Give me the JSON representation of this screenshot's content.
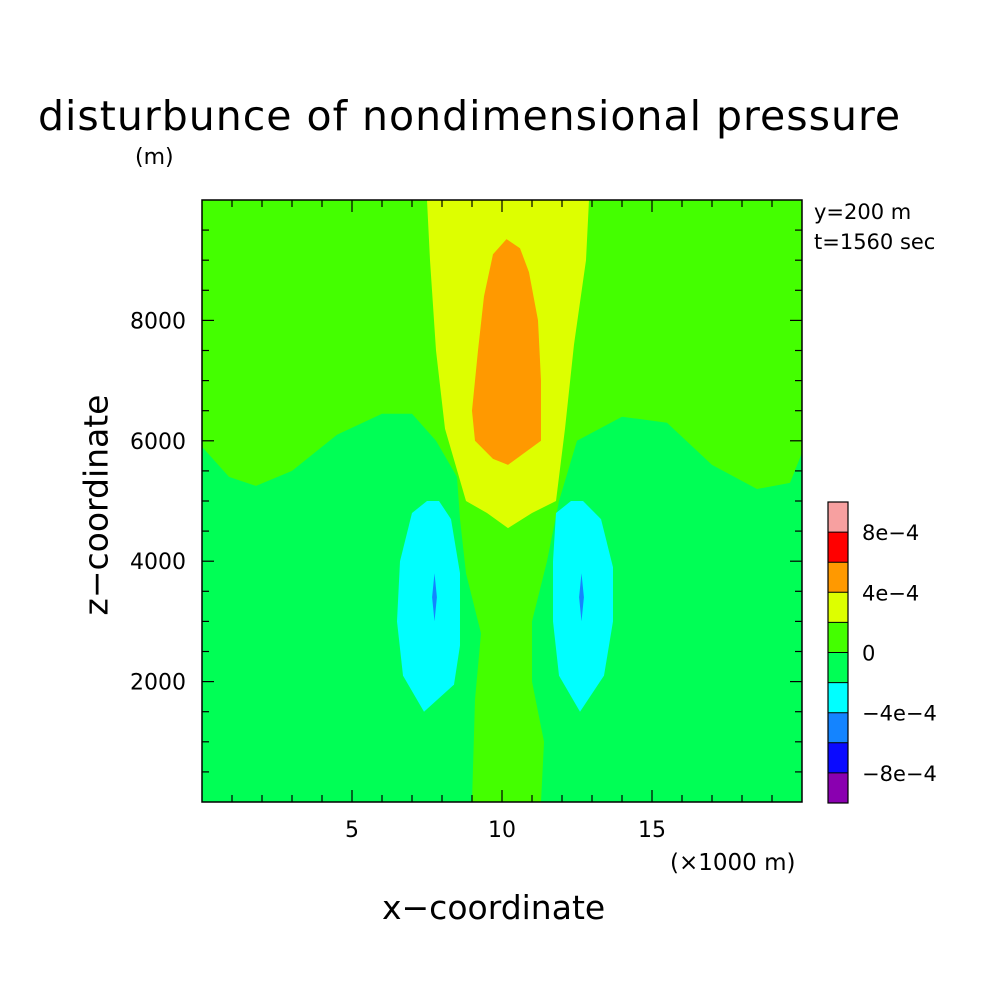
{
  "chart_data": {
    "type": "contour",
    "title": "disturbunce of nondimensional pressure",
    "xlabel": "x−coordinate",
    "ylabel": "z−coordinate",
    "x_unit": "(×1000 m)",
    "y_unit": "(m)",
    "annotations": [
      "y=200 m",
      "t=1560 sec"
    ],
    "xlim": [
      0,
      20000
    ],
    "ylim": [
      0,
      10000
    ],
    "x_ticks": [
      5000,
      10000,
      15000
    ],
    "x_tick_labels": [
      "5",
      "10",
      "15"
    ],
    "y_ticks": [
      2000,
      4000,
      6000,
      8000
    ],
    "y_tick_labels": [
      "2000",
      "4000",
      "6000",
      "8000"
    ],
    "colorbar": {
      "boundaries": [
        -0.001,
        -0.0008,
        -0.0006,
        -0.0004,
        -0.0002,
        0,
        0.0002,
        0.0004,
        0.0006,
        0.0008,
        0.001
      ],
      "colors": [
        "#8a00b0",
        "#0a0aff",
        "#1484ff",
        "#00ffff",
        "#00ff55",
        "#44ff00",
        "#ddff00",
        "#ff9900",
        "#ff0000",
        "#f7a0a0"
      ],
      "labels": [
        {
          "value": -0.0008,
          "text": "−8e−4"
        },
        {
          "value": -0.0004,
          "text": "−4e−4"
        },
        {
          "value": 0,
          "text": "0"
        },
        {
          "value": 0.0004,
          "text": "4e−4"
        },
        {
          "value": 0.0008,
          "text": "8e−4"
        }
      ]
    },
    "regions": [
      {
        "name": "background",
        "level_range": [
          -0.0002,
          0
        ],
        "color": "#00ff55",
        "points": [
          [
            0,
            0
          ],
          [
            20000,
            0
          ],
          [
            20000,
            10000
          ],
          [
            0,
            10000
          ]
        ]
      },
      {
        "name": "upper-positive-band",
        "level_range": [
          0,
          0.0002
        ],
        "color": "#44ff00",
        "points": [
          [
            0,
            10000
          ],
          [
            0,
            5900
          ],
          [
            900,
            5400
          ],
          [
            1800,
            5250
          ],
          [
            3000,
            5500
          ],
          [
            4500,
            6100
          ],
          [
            6000,
            6450
          ],
          [
            7000,
            6450
          ],
          [
            7800,
            6000
          ],
          [
            8500,
            5400
          ],
          [
            8600,
            4700
          ],
          [
            8800,
            3800
          ],
          [
            9300,
            2800
          ],
          [
            9100,
            1700
          ],
          [
            9000,
            0
          ],
          [
            11300,
            0
          ],
          [
            11400,
            1000
          ],
          [
            11000,
            2000
          ],
          [
            11000,
            3000
          ],
          [
            11500,
            4000
          ],
          [
            11900,
            5000
          ],
          [
            12500,
            6000
          ],
          [
            14000,
            6400
          ],
          [
            15500,
            6300
          ],
          [
            17000,
            5600
          ],
          [
            18500,
            5200
          ],
          [
            19600,
            5300
          ],
          [
            20000,
            5800
          ],
          [
            20000,
            10000
          ]
        ]
      },
      {
        "name": "central-plume",
        "level_range": [
          0.0002,
          0.0004
        ],
        "color": "#ddff00",
        "points": [
          [
            7500,
            10000
          ],
          [
            7600,
            9000
          ],
          [
            7800,
            7500
          ],
          [
            8100,
            6200
          ],
          [
            8800,
            5000
          ],
          [
            9500,
            4800
          ],
          [
            10200,
            4550
          ],
          [
            11000,
            4800
          ],
          [
            11800,
            5000
          ],
          [
            12100,
            6200
          ],
          [
            12400,
            7600
          ],
          [
            12800,
            9000
          ],
          [
            12900,
            10000
          ]
        ]
      },
      {
        "name": "upper-maximum",
        "level_range": [
          0.0004,
          0.0006
        ],
        "color": "#ff9900",
        "points": [
          [
            10150,
            9350
          ],
          [
            9700,
            9100
          ],
          [
            9400,
            8400
          ],
          [
            9200,
            7500
          ],
          [
            9000,
            6500
          ],
          [
            9100,
            6000
          ],
          [
            9700,
            5700
          ],
          [
            10200,
            5600
          ],
          [
            11300,
            6000
          ],
          [
            11300,
            7000
          ],
          [
            11200,
            8000
          ],
          [
            10900,
            8800
          ],
          [
            10600,
            9200
          ]
        ]
      },
      {
        "name": "left-minimum",
        "level_range": [
          -0.0004,
          -0.0002
        ],
        "color": "#00ffff",
        "points": [
          [
            7500,
            5000
          ],
          [
            7000,
            4800
          ],
          [
            6600,
            4000
          ],
          [
            6500,
            3000
          ],
          [
            6700,
            2100
          ],
          [
            7400,
            1500
          ],
          [
            8400,
            1950
          ],
          [
            8600,
            2600
          ],
          [
            8600,
            3800
          ],
          [
            8300,
            4700
          ],
          [
            7900,
            5000
          ]
        ]
      },
      {
        "name": "left-minimum-core",
        "level_range": [
          -0.0006,
          -0.0004
        ],
        "color": "#1484ff",
        "points": [
          [
            7750,
            3800
          ],
          [
            7670,
            3400
          ],
          [
            7750,
            3000
          ],
          [
            7830,
            3400
          ]
        ]
      },
      {
        "name": "right-minimum",
        "level_range": [
          -0.0004,
          -0.0002
        ],
        "color": "#00ffff",
        "points": [
          [
            12300,
            5000
          ],
          [
            11800,
            4800
          ],
          [
            11700,
            4000
          ],
          [
            11700,
            3000
          ],
          [
            11900,
            2100
          ],
          [
            12600,
            1500
          ],
          [
            13400,
            2100
          ],
          [
            13700,
            3000
          ],
          [
            13700,
            3900
          ],
          [
            13300,
            4700
          ],
          [
            12700,
            5000
          ]
        ]
      },
      {
        "name": "right-minimum-core",
        "level_range": [
          -0.0006,
          -0.0004
        ],
        "color": "#1484ff",
        "points": [
          [
            12650,
            3800
          ],
          [
            12570,
            3400
          ],
          [
            12650,
            3000
          ],
          [
            12730,
            3400
          ]
        ]
      }
    ]
  }
}
